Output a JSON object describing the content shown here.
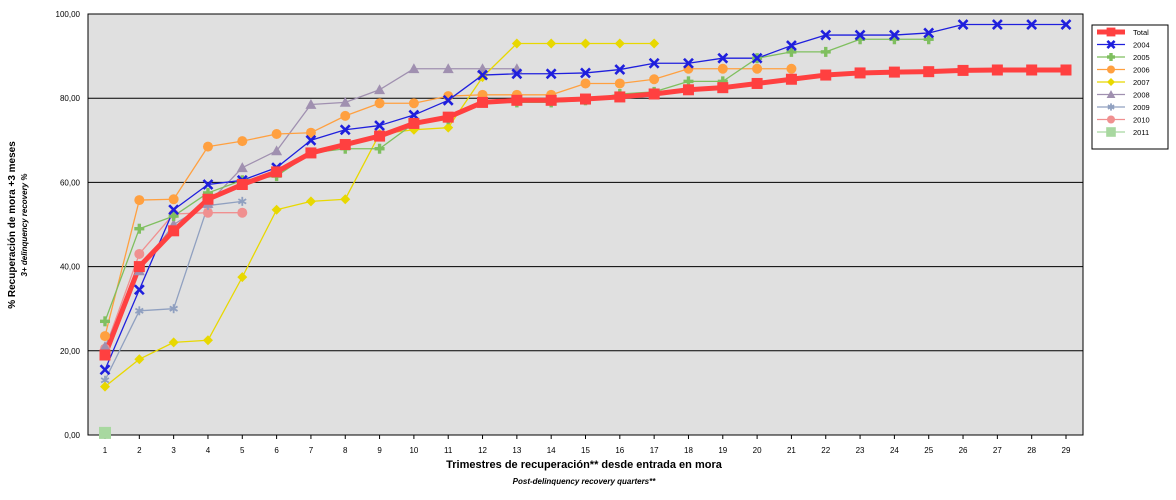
{
  "chart_data": {
    "type": "line",
    "ylabel": "% Recuperación de mora +3 meses",
    "ylabel_sub": "3+ delinquency recovery %",
    "xlabel": "Trimestres de recuperación** desde entrada en mora",
    "xlabel_sub": "Post-delinquency recovery quarters**",
    "xlim": [
      1,
      29
    ],
    "ylim": [
      0,
      100
    ],
    "x_ticks": [
      1,
      2,
      3,
      4,
      5,
      6,
      7,
      8,
      9,
      10,
      11,
      12,
      13,
      14,
      15,
      16,
      17,
      18,
      19,
      20,
      21,
      22,
      23,
      24,
      25,
      26,
      27,
      28,
      29
    ],
    "y_ticks": [
      0,
      20,
      40,
      60,
      80,
      100
    ],
    "y_tick_labels": [
      "0,00",
      "20,00",
      "40,00",
      "60,00",
      "80,00",
      "100,00"
    ],
    "grid": "horizontal",
    "legend_position": "right",
    "series": [
      {
        "name": "Total",
        "color": "#ff4040",
        "marker": "square",
        "width": 5,
        "x": [
          1,
          2,
          3,
          4,
          5,
          6,
          7,
          8,
          9,
          10,
          11,
          12,
          13,
          14,
          15,
          16,
          17,
          18,
          19,
          20,
          21,
          22,
          23,
          24,
          25,
          26,
          27,
          28,
          29
        ],
        "values": [
          19,
          40,
          48.5,
          56,
          59.5,
          62.5,
          67,
          69,
          71,
          74,
          75.5,
          79,
          79.5,
          79.5,
          79.8,
          80.3,
          81,
          82,
          82.5,
          83.5,
          84.5,
          85.5,
          86,
          86.2,
          86.3,
          86.6,
          86.7,
          86.7,
          86.7
        ]
      },
      {
        "name": "2004",
        "color": "#1f1fdd",
        "marker": "x",
        "width": 1.3,
        "x": [
          1,
          2,
          3,
          4,
          5,
          6,
          7,
          8,
          9,
          10,
          11,
          12,
          13,
          14,
          15,
          16,
          17,
          18,
          19,
          20,
          21,
          22,
          23,
          24,
          25,
          26,
          27,
          28,
          29
        ],
        "values": [
          15.5,
          34.5,
          53.5,
          59.5,
          60.5,
          63.5,
          70,
          72.5,
          73.5,
          76,
          79.5,
          85.5,
          85.8,
          85.8,
          86,
          86.8,
          88.3,
          88.3,
          89.5,
          89.5,
          92.5,
          95,
          95,
          95,
          95.5,
          97.5,
          97.5,
          97.5,
          97.5
        ]
      },
      {
        "name": "2005",
        "color": "#7fbf5f",
        "marker": "plus",
        "width": 1.3,
        "x": [
          1,
          2,
          3,
          4,
          5,
          6,
          7,
          8,
          9,
          10,
          11,
          12,
          13,
          14,
          15,
          16,
          17,
          18,
          19,
          20,
          21,
          22,
          23,
          24,
          25
        ],
        "values": [
          27,
          49,
          52,
          57.5,
          60.5,
          61.5,
          67,
          68,
          68,
          74,
          75,
          79,
          79,
          79,
          79.5,
          81,
          81.5,
          84,
          84,
          89.5,
          91,
          91,
          94,
          94,
          94
        ]
      },
      {
        "name": "2006",
        "color": "#ffa040",
        "marker": "circle",
        "width": 1.3,
        "x": [
          1,
          2,
          3,
          4,
          5,
          6,
          7,
          8,
          9,
          10,
          11,
          12,
          13,
          14,
          15,
          16,
          17,
          18,
          19,
          20,
          21
        ],
        "values": [
          23.5,
          55.8,
          56,
          68.5,
          69.8,
          71.5,
          71.8,
          75.8,
          78.8,
          78.8,
          80.5,
          80.8,
          80.8,
          80.8,
          83.5,
          83.5,
          84.5,
          87,
          87,
          87,
          87
        ]
      },
      {
        "name": "2007",
        "color": "#e8d800",
        "marker": "diamond",
        "width": 1.3,
        "x": [
          1,
          2,
          3,
          4,
          5,
          6,
          7,
          8,
          9,
          10,
          11,
          12,
          13,
          14,
          15,
          16,
          17
        ],
        "values": [
          11.5,
          18,
          22,
          22.5,
          37.5,
          53.5,
          55.5,
          56,
          71.5,
          72.5,
          73,
          85,
          93,
          93,
          93,
          93,
          93
        ]
      },
      {
        "name": "2008",
        "color": "#a090b0",
        "marker": "triangle",
        "width": 1.3,
        "x": [
          1,
          2,
          3,
          4,
          5,
          6,
          7,
          8,
          9,
          10,
          11,
          12,
          13
        ],
        "values": [
          21,
          39,
          50,
          55,
          63.5,
          67.5,
          78.5,
          79,
          82,
          87,
          87,
          87,
          87
        ]
      },
      {
        "name": "2009",
        "color": "#90a0c0",
        "marker": "star",
        "width": 1.3,
        "x": [
          1,
          2,
          3,
          4,
          5
        ],
        "values": [
          13,
          29.5,
          30,
          54.5,
          55.5
        ]
      },
      {
        "name": "2010",
        "color": "#f09090",
        "marker": "circle",
        "width": 1.3,
        "x": [
          1,
          2,
          3,
          4,
          5
        ],
        "values": [
          20.5,
          43,
          52.5,
          52.8,
          52.8
        ]
      },
      {
        "name": "2011",
        "color": "#a8d8a0",
        "marker": "bigsquare",
        "width": 1.3,
        "x": [
          1
        ],
        "values": [
          0.5
        ]
      }
    ]
  }
}
